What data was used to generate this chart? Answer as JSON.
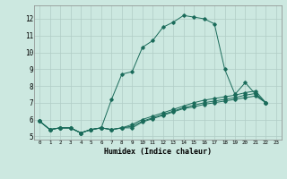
{
  "xlabel": "Humidex (Indice chaleur)",
  "xlim": [
    -0.5,
    23.5
  ],
  "ylim": [
    4.8,
    12.8
  ],
  "yticks": [
    5,
    6,
    7,
    8,
    9,
    10,
    11,
    12
  ],
  "xticks": [
    0,
    1,
    2,
    3,
    4,
    5,
    6,
    7,
    8,
    9,
    10,
    11,
    12,
    13,
    14,
    15,
    16,
    17,
    18,
    19,
    20,
    21,
    22,
    23
  ],
  "bg_color": "#cce8e0",
  "line_color": "#1a6b5a",
  "grid_color": "#b0ccc6",
  "line1_x": [
    0,
    1,
    2,
    3,
    4,
    5,
    6,
    7,
    8,
    9,
    10,
    11,
    12,
    13,
    14,
    15,
    16,
    17,
    18,
    19,
    20,
    21,
    22
  ],
  "line1_y": [
    5.9,
    5.4,
    5.5,
    5.5,
    5.2,
    5.4,
    5.5,
    7.2,
    8.7,
    8.85,
    10.3,
    10.7,
    11.5,
    11.8,
    12.2,
    12.1,
    12.0,
    11.7,
    9.0,
    7.5,
    8.2,
    7.5,
    7.0
  ],
  "line2_x": [
    0,
    1,
    2,
    3,
    4,
    5,
    6,
    7,
    8,
    9,
    10,
    11,
    12,
    13,
    14,
    15,
    16,
    17,
    18,
    19,
    20,
    21,
    22
  ],
  "line2_y": [
    5.9,
    5.4,
    5.5,
    5.5,
    5.2,
    5.4,
    5.5,
    5.4,
    5.5,
    5.7,
    6.0,
    6.2,
    6.4,
    6.6,
    6.8,
    7.0,
    7.15,
    7.25,
    7.35,
    7.45,
    7.6,
    7.7,
    7.0
  ],
  "line3_x": [
    0,
    1,
    2,
    3,
    4,
    5,
    6,
    7,
    8,
    9,
    10,
    11,
    12,
    13,
    14,
    15,
    16,
    17,
    18,
    19,
    20,
    21,
    22
  ],
  "line3_y": [
    5.9,
    5.4,
    5.5,
    5.5,
    5.2,
    5.4,
    5.5,
    5.4,
    5.5,
    5.6,
    5.9,
    6.1,
    6.3,
    6.5,
    6.7,
    6.85,
    7.0,
    7.1,
    7.2,
    7.3,
    7.45,
    7.55,
    7.0
  ],
  "line4_x": [
    0,
    1,
    2,
    3,
    4,
    5,
    6,
    7,
    8,
    9,
    10,
    11,
    12,
    13,
    14,
    15,
    16,
    17,
    18,
    19,
    20,
    21,
    22
  ],
  "line4_y": [
    5.9,
    5.4,
    5.5,
    5.5,
    5.2,
    5.4,
    5.5,
    5.4,
    5.5,
    5.5,
    5.85,
    6.05,
    6.25,
    6.45,
    6.65,
    6.75,
    6.9,
    7.0,
    7.1,
    7.2,
    7.3,
    7.4,
    7.0
  ]
}
